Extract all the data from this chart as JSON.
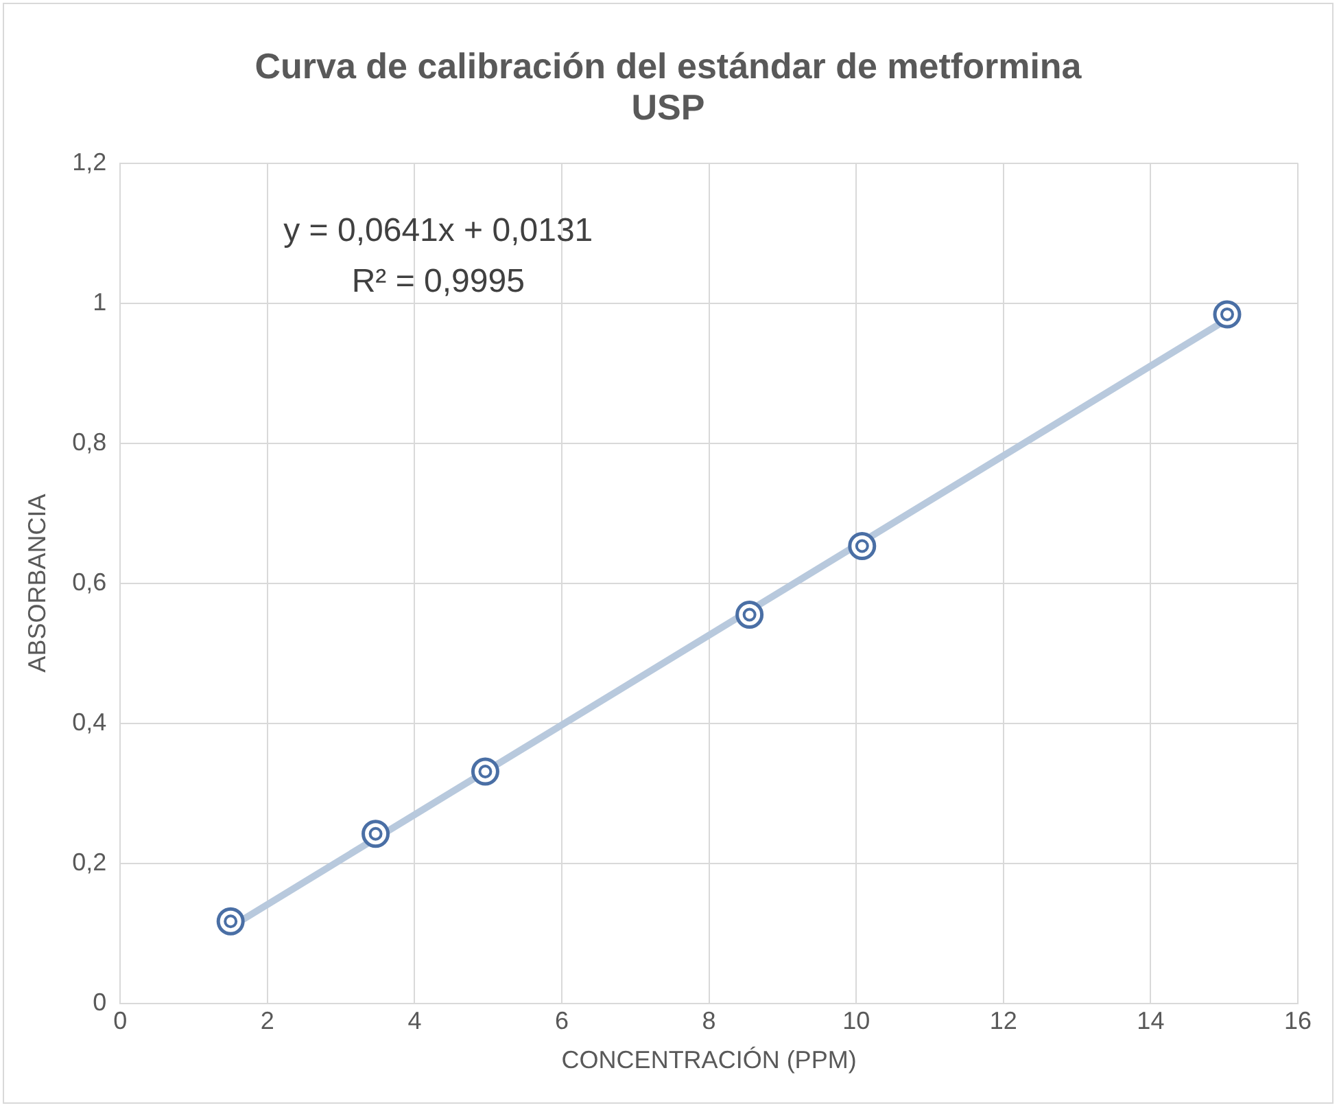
{
  "chart_data": {
    "type": "scatter",
    "title": "Curva de calibración del estándar de metformina USP",
    "xlabel": "CONCENTRACIÓN (PPM)",
    "ylabel": "ABSORBANCIA",
    "x": [
      1.5,
      3.47,
      4.96,
      8.55,
      10.08,
      15.04
    ],
    "series": [
      {
        "color": "#4a6fa5",
        "values": [
          0.117,
          0.242,
          0.331,
          0.555,
          0.653,
          0.984
        ]
      },
      {
        "type": "line",
        "marker": "none",
        "color": "#b8c9dd",
        "x": [
          1.5,
          15.04
        ],
        "values": [
          0.109,
          0.977
        ]
      }
    ],
    "xlim": [
      0,
      16
    ],
    "xticks": [
      0,
      2,
      4,
      6,
      8,
      10,
      12,
      14,
      16
    ],
    "ylim": [
      0,
      1.2
    ],
    "yticks": [
      0,
      {
        "value": 0.2,
        "label": "0,2"
      },
      {
        "value": 0.4,
        "label": "0,4"
      },
      {
        "value": 0.6,
        "label": "0,6"
      },
      {
        "value": 0.8,
        "label": "0,8"
      },
      1,
      {
        "value": 1.2,
        "label": "1,2"
      }
    ],
    "grid": true,
    "legend": false,
    "marker": "circle",
    "annotations": [
      "y = 0,0641x + 0,0131",
      "R² = 0,9995"
    ]
  }
}
